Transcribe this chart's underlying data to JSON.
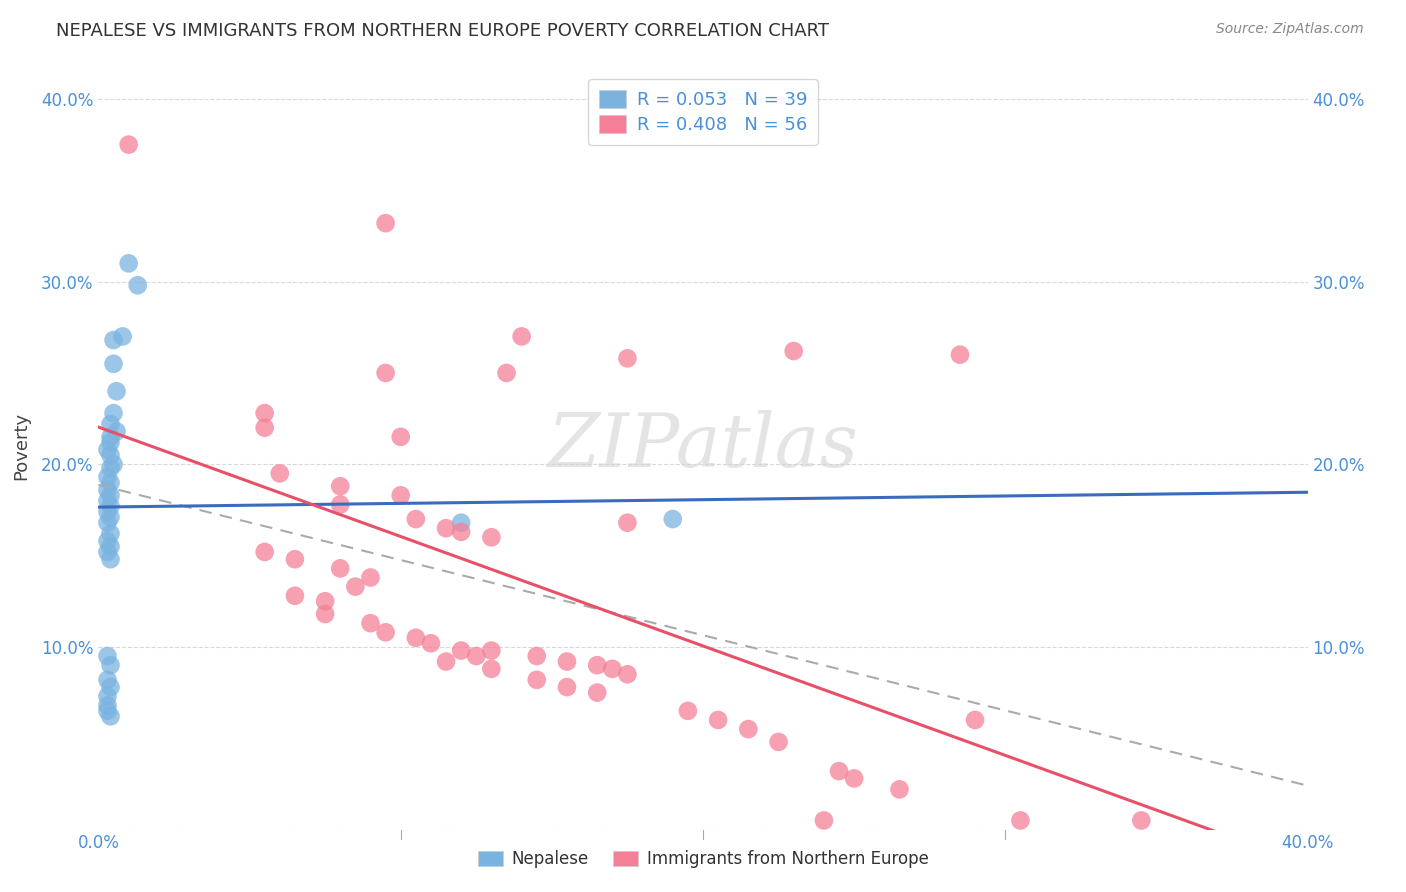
{
  "title": "NEPALESE VS IMMIGRANTS FROM NORTHERN EUROPE POVERTY CORRELATION CHART",
  "source": "Source: ZipAtlas.com",
  "ylabel": "Poverty",
  "nepalese_color": "#7ab3e0",
  "northern_europe_color": "#f48098",
  "nepalese_line_color": "#3a6bbf",
  "northern_europe_line_color": "#e8506a",
  "dashed_line_color": "#aaaaaa",
  "background_color": "#ffffff",
  "grid_color": "#d8d8d8",
  "nepalese_points": [
    [
      0.01,
      0.31
    ],
    [
      0.013,
      0.298
    ],
    [
      0.008,
      0.27
    ],
    [
      0.005,
      0.268
    ],
    [
      0.005,
      0.255
    ],
    [
      0.006,
      0.24
    ],
    [
      0.005,
      0.228
    ],
    [
      0.004,
      0.222
    ],
    [
      0.006,
      0.218
    ],
    [
      0.004,
      0.215
    ],
    [
      0.004,
      0.212
    ],
    [
      0.003,
      0.208
    ],
    [
      0.004,
      0.205
    ],
    [
      0.005,
      0.2
    ],
    [
      0.004,
      0.198
    ],
    [
      0.003,
      0.193
    ],
    [
      0.004,
      0.19
    ],
    [
      0.003,
      0.186
    ],
    [
      0.004,
      0.183
    ],
    [
      0.003,
      0.18
    ],
    [
      0.004,
      0.177
    ],
    [
      0.003,
      0.174
    ],
    [
      0.004,
      0.171
    ],
    [
      0.003,
      0.168
    ],
    [
      0.004,
      0.162
    ],
    [
      0.003,
      0.158
    ],
    [
      0.004,
      0.155
    ],
    [
      0.003,
      0.152
    ],
    [
      0.004,
      0.148
    ],
    [
      0.12,
      0.168
    ],
    [
      0.003,
      0.095
    ],
    [
      0.004,
      0.09
    ],
    [
      0.003,
      0.082
    ],
    [
      0.004,
      0.078
    ],
    [
      0.003,
      0.073
    ],
    [
      0.003,
      0.068
    ],
    [
      0.19,
      0.17
    ],
    [
      0.003,
      0.065
    ],
    [
      0.004,
      0.062
    ]
  ],
  "northern_europe_points": [
    [
      0.01,
      0.375
    ],
    [
      0.095,
      0.332
    ],
    [
      0.14,
      0.27
    ],
    [
      0.23,
      0.262
    ],
    [
      0.095,
      0.25
    ],
    [
      0.135,
      0.25
    ],
    [
      0.055,
      0.228
    ],
    [
      0.055,
      0.22
    ],
    [
      0.1,
      0.215
    ],
    [
      0.06,
      0.195
    ],
    [
      0.08,
      0.188
    ],
    [
      0.1,
      0.183
    ],
    [
      0.08,
      0.178
    ],
    [
      0.105,
      0.17
    ],
    [
      0.175,
      0.168
    ],
    [
      0.115,
      0.165
    ],
    [
      0.12,
      0.163
    ],
    [
      0.13,
      0.16
    ],
    [
      0.055,
      0.152
    ],
    [
      0.065,
      0.148
    ],
    [
      0.08,
      0.143
    ],
    [
      0.09,
      0.138
    ],
    [
      0.085,
      0.133
    ],
    [
      0.065,
      0.128
    ],
    [
      0.075,
      0.125
    ],
    [
      0.075,
      0.118
    ],
    [
      0.09,
      0.113
    ],
    [
      0.095,
      0.108
    ],
    [
      0.105,
      0.105
    ],
    [
      0.11,
      0.102
    ],
    [
      0.12,
      0.098
    ],
    [
      0.125,
      0.095
    ],
    [
      0.115,
      0.092
    ],
    [
      0.13,
      0.088
    ],
    [
      0.285,
      0.26
    ],
    [
      0.175,
      0.258
    ],
    [
      0.13,
      0.098
    ],
    [
      0.145,
      0.095
    ],
    [
      0.155,
      0.092
    ],
    [
      0.165,
      0.09
    ],
    [
      0.17,
      0.088
    ],
    [
      0.175,
      0.085
    ],
    [
      0.145,
      0.082
    ],
    [
      0.155,
      0.078
    ],
    [
      0.165,
      0.075
    ],
    [
      0.195,
      0.065
    ],
    [
      0.205,
      0.06
    ],
    [
      0.215,
      0.055
    ],
    [
      0.225,
      0.048
    ],
    [
      0.245,
      0.032
    ],
    [
      0.25,
      0.028
    ],
    [
      0.265,
      0.022
    ],
    [
      0.29,
      0.06
    ],
    [
      0.305,
      0.005
    ],
    [
      0.24,
      0.005
    ],
    [
      0.345,
      0.005
    ]
  ]
}
